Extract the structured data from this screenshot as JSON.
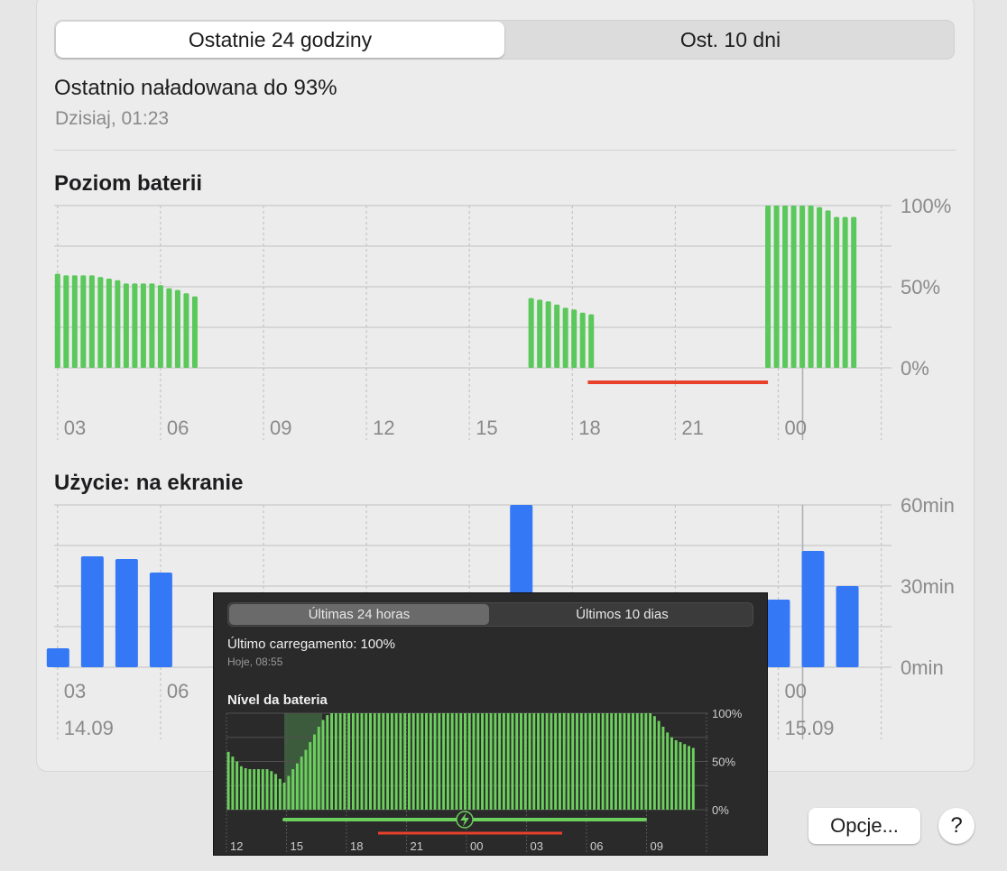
{
  "tabs": {
    "active": "Ostatnie 24 godziny",
    "other": "Ost. 10 dni"
  },
  "last_charge": {
    "text": "Ostatnio naładowana do 93%",
    "when": "Dzisiaj, 01:23"
  },
  "battery_section": {
    "title": "Poziom baterii"
  },
  "usage_section": {
    "title": "Użycie: na ekranie"
  },
  "colors": {
    "battery": "#5ac85a",
    "usage": "#3478f6",
    "discharge": "#e8402a"
  },
  "chart_data": [
    {
      "type": "bar",
      "title": "Poziom baterii",
      "y_ticks": [
        "100%",
        "50%",
        "0%"
      ],
      "ylim": [
        0,
        100
      ],
      "x_ticks": [
        "03",
        "06",
        "09",
        "12",
        "15",
        "18",
        "21",
        "00"
      ],
      "x_range_hours": [
        2.4,
        26.8
      ],
      "x": [
        2.5,
        2.75,
        3.0,
        3.25,
        3.5,
        3.75,
        4.0,
        4.25,
        4.5,
        4.75,
        5.0,
        5.25,
        5.5,
        5.75,
        6.0,
        6.25,
        6.5,
        16.3,
        16.55,
        16.8,
        17.05,
        17.3,
        17.55,
        17.8,
        18.05,
        23.2,
        23.45,
        23.7,
        23.95,
        24.2,
        24.45,
        24.7,
        24.95,
        25.2,
        25.45,
        25.7
      ],
      "values": [
        58,
        57,
        57,
        57,
        57,
        56,
        55,
        54,
        52,
        52,
        52,
        52,
        51,
        49,
        48,
        46,
        44,
        43,
        42,
        41,
        39,
        37,
        36,
        34,
        33,
        100,
        100,
        100,
        100,
        100,
        100,
        99,
        97,
        93,
        93,
        93
      ],
      "discharge_line_hours": [
        17.95,
        23.2
      ],
      "now_marker_hour": 24.0,
      "grid": true,
      "legend": "none"
    },
    {
      "type": "bar",
      "title": "Użycie: na ekranie",
      "y_ticks": [
        "60min",
        "30min",
        "0min"
      ],
      "ylim": [
        0,
        60
      ],
      "x_ticks": [
        "03",
        "06",
        "00"
      ],
      "date_labels": [
        "14.09",
        "15.09"
      ],
      "x": [
        2.5,
        3.5,
        4.5,
        5.5,
        16.0,
        23.5,
        24.5,
        25.5
      ],
      "values": [
        7,
        41,
        40,
        35,
        60,
        25,
        43,
        30
      ],
      "grid": true,
      "legend": "none"
    }
  ],
  "overlay": {
    "tabs": {
      "active": "Últimas 24 horas",
      "other": "Últimos 10 dias"
    },
    "last_charge": "Último carregamento: 100%",
    "when": "Hoje, 08:55",
    "section_title": "Nível da bateria",
    "chart_data": {
      "type": "bar",
      "title": "Nível da bateria",
      "y_ticks": [
        "100%",
        "50%",
        "0%"
      ],
      "ylim": [
        0,
        100
      ],
      "x_ticks": [
        "12",
        "15",
        "18",
        "21",
        "00",
        "03",
        "06",
        "09"
      ],
      "values": [
        60,
        55,
        50,
        45,
        43,
        42,
        42,
        42,
        42,
        42,
        40,
        37,
        32,
        28,
        35,
        42,
        48,
        55,
        62,
        70,
        78,
        86,
        93,
        98,
        100,
        100,
        100,
        100,
        100,
        100,
        100,
        100,
        100,
        100,
        100,
        100,
        100,
        100,
        100,
        100,
        100,
        100,
        100,
        100,
        100,
        100,
        100,
        100,
        100,
        100,
        100,
        100,
        100,
        100,
        100,
        100,
        100,
        100,
        100,
        100,
        100,
        100,
        100,
        100,
        100,
        100,
        100,
        100,
        100,
        100,
        100,
        100,
        100,
        100,
        100,
        100,
        100,
        100,
        100,
        100,
        100,
        100,
        100,
        100,
        100,
        100,
        100,
        100,
        100,
        100,
        100,
        100,
        100,
        100,
        100,
        100,
        100,
        100,
        100,
        97,
        92,
        86,
        80,
        75,
        72,
        70,
        68,
        66,
        64
      ],
      "grid": true,
      "legend": "none"
    }
  },
  "buttons": {
    "options": "Opcje...",
    "help": "?"
  }
}
